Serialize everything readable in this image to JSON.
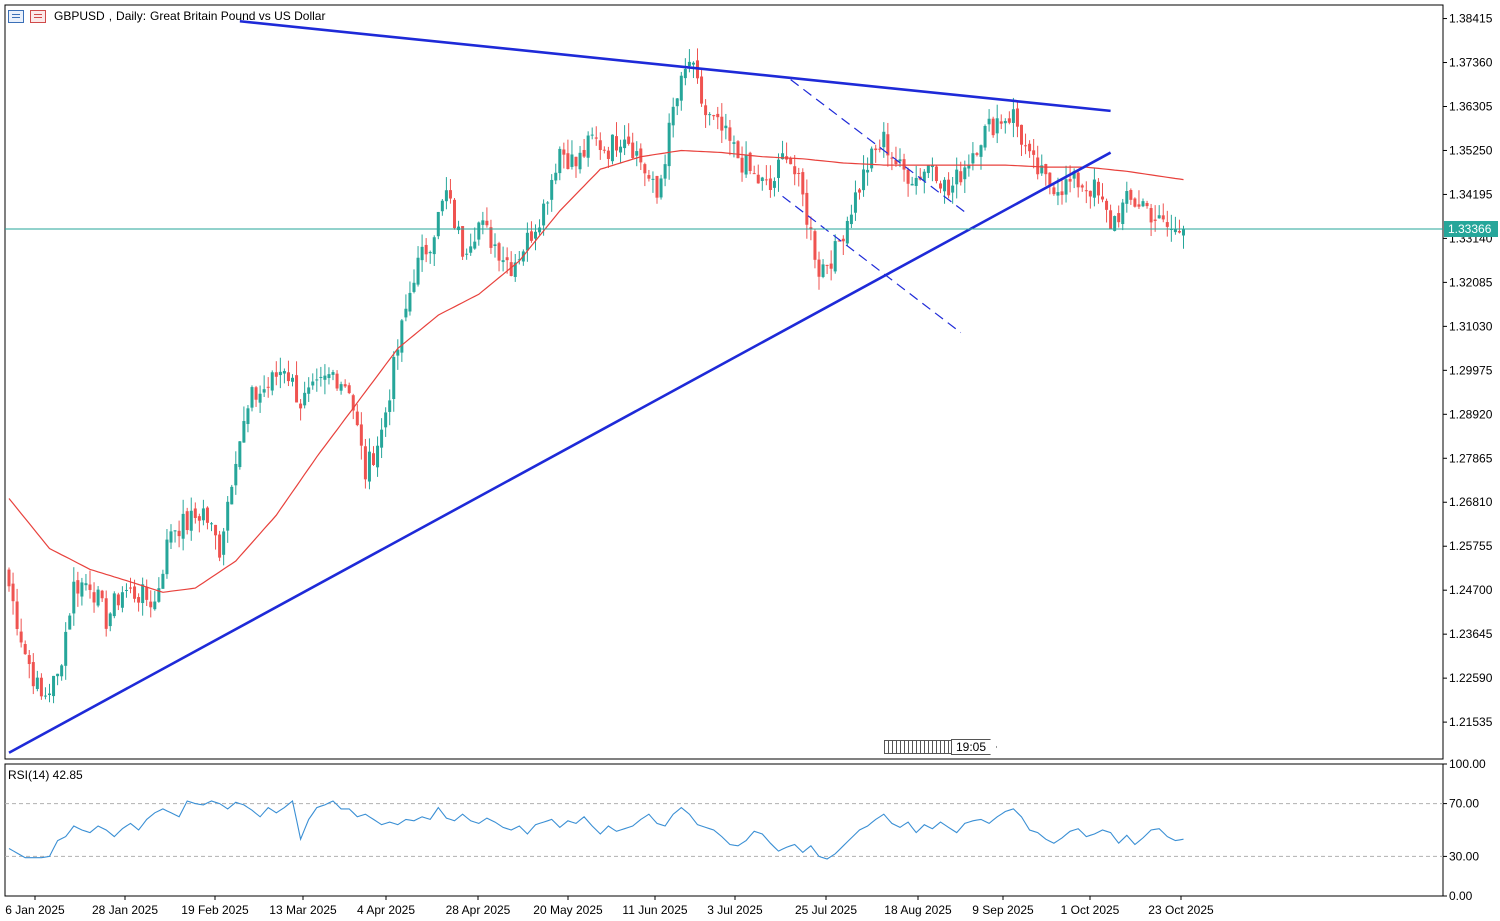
{
  "header": {
    "symbol": "GBPUSD",
    "timeframe": "Daily:",
    "description": "Great Britain Pound vs US Dollar"
  },
  "current_price_label": "1.33366",
  "time_marker_label": "19:05",
  "rsi": {
    "label": "RSI(14) 42.85"
  },
  "colors": {
    "bull": "#26a69a",
    "bear": "#ef5350",
    "ma": "#e8413c",
    "trendline": "#1e2ad8",
    "rsi_line": "#3a8fd4",
    "price_line": "#26a69a"
  },
  "chart_data": [
    {
      "type": "candlestick",
      "title": "GBPUSD, Daily: Great Britain Pound vs US Dollar",
      "ylim": [
        1.2065,
        1.3874
      ],
      "y_ticks": [
        "1.38415",
        "1.37360",
        "1.36305",
        "1.35250",
        "1.34195",
        "1.33140",
        "1.32085",
        "1.31030",
        "1.29975",
        "1.28920",
        "1.27865",
        "1.26810",
        "1.25755",
        "1.24700",
        "1.23645",
        "1.22590",
        "1.21535"
      ],
      "x_ticks": [
        "6 Jan 2025",
        "28 Jan 2025",
        "19 Feb 2025",
        "13 Mar 2025",
        "4 Apr 2025",
        "28 Apr 2025",
        "20 May 2025",
        "11 Jun 2025",
        "3 Jul 2025",
        "25 Jul 2025",
        "18 Aug 2025",
        "9 Sep 2025",
        "1 Oct 2025",
        "23 Oct 2025"
      ],
      "close_anchors": [
        [
          0,
          1.248
        ],
        [
          4,
          1.232
        ],
        [
          8,
          1.221
        ],
        [
          12,
          1.226
        ],
        [
          16,
          1.248
        ],
        [
          20,
          1.249
        ],
        [
          24,
          1.24
        ],
        [
          28,
          1.247
        ],
        [
          32,
          1.246
        ],
        [
          36,
          1.244
        ],
        [
          40,
          1.262
        ],
        [
          44,
          1.263
        ],
        [
          48,
          1.266
        ],
        [
          52,
          1.257
        ],
        [
          56,
          1.28
        ],
        [
          60,
          1.293
        ],
        [
          64,
          1.296
        ],
        [
          68,
          1.301
        ],
        [
          72,
          1.292
        ],
        [
          76,
          1.295
        ],
        [
          80,
          1.299
        ],
        [
          84,
          1.296
        ],
        [
          88,
          1.275
        ],
        [
          92,
          1.285
        ],
        [
          96,
          1.305
        ],
        [
          100,
          1.323
        ],
        [
          104,
          1.331
        ],
        [
          108,
          1.342
        ],
        [
          112,
          1.329
        ],
        [
          116,
          1.335
        ],
        [
          120,
          1.33
        ],
        [
          124,
          1.325
        ],
        [
          128,
          1.331
        ],
        [
          132,
          1.339
        ],
        [
          136,
          1.353
        ],
        [
          140,
          1.349
        ],
        [
          144,
          1.355
        ],
        [
          148,
          1.353
        ],
        [
          152,
          1.357
        ],
        [
          156,
          1.35
        ],
        [
          160,
          1.341
        ],
        [
          164,
          1.362
        ],
        [
          168,
          1.374
        ],
        [
          172,
          1.361
        ],
        [
          176,
          1.357
        ],
        [
          180,
          1.351
        ],
        [
          184,
          1.346
        ],
        [
          188,
          1.343
        ],
        [
          192,
          1.353
        ],
        [
          196,
          1.341
        ],
        [
          200,
          1.324
        ],
        [
          204,
          1.328
        ],
        [
          208,
          1.339
        ],
        [
          212,
          1.349
        ],
        [
          216,
          1.355
        ],
        [
          220,
          1.348
        ],
        [
          224,
          1.346
        ],
        [
          228,
          1.35
        ],
        [
          232,
          1.342
        ],
        [
          236,
          1.349
        ],
        [
          240,
          1.356
        ],
        [
          244,
          1.36
        ],
        [
          248,
          1.361
        ],
        [
          252,
          1.35
        ],
        [
          256,
          1.345
        ],
        [
          260,
          1.344
        ],
        [
          264,
          1.345
        ],
        [
          268,
          1.343
        ],
        [
          272,
          1.335
        ],
        [
          276,
          1.34
        ],
        [
          280,
          1.34
        ],
        [
          284,
          1.335
        ],
        [
          288,
          1.333
        ],
        [
          290,
          1.334
        ]
      ],
      "moving_average": {
        "name": "MA",
        "anchors": [
          [
            0,
            1.269
          ],
          [
            10,
            1.257
          ],
          [
            20,
            1.252
          ],
          [
            30,
            1.249
          ],
          [
            38,
            1.2465
          ],
          [
            46,
            1.2475
          ],
          [
            56,
            1.254
          ],
          [
            66,
            1.265
          ],
          [
            76,
            1.279
          ],
          [
            86,
            1.292
          ],
          [
            96,
            1.305
          ],
          [
            106,
            1.313
          ],
          [
            116,
            1.318
          ],
          [
            126,
            1.326
          ],
          [
            136,
            1.338
          ],
          [
            146,
            1.348
          ],
          [
            156,
            1.351
          ],
          [
            166,
            1.3525
          ],
          [
            176,
            1.352
          ],
          [
            186,
            1.351
          ],
          [
            196,
            1.3505
          ],
          [
            206,
            1.3495
          ],
          [
            216,
            1.349
          ],
          [
            226,
            1.349
          ],
          [
            236,
            1.349
          ],
          [
            246,
            1.349
          ],
          [
            256,
            1.3485
          ],
          [
            266,
            1.3485
          ],
          [
            276,
            1.3475
          ],
          [
            290,
            1.3455
          ]
        ]
      },
      "trendlines": [
        {
          "name": "upper",
          "from": [
            57,
            1.3835
          ],
          "to": [
            272,
            1.362
          ],
          "style": "solid"
        },
        {
          "name": "lower",
          "from": [
            0,
            1.208
          ],
          "to": [
            272,
            1.352
          ],
          "style": "solid"
        },
        {
          "name": "channel_top",
          "from": [
            193,
            1.3695
          ],
          "to": [
            237,
            1.337
          ],
          "style": "dashed"
        },
        {
          "name": "channel_bottom",
          "from": [
            191,
            1.3415
          ],
          "to": [
            235,
            1.3088
          ],
          "style": "dashed"
        }
      ],
      "last_close": 1.33366
    },
    {
      "type": "line",
      "title": "RSI(14) 42.85",
      "ylim": [
        0,
        100
      ],
      "y_ticks": [
        "100.00",
        "70.00",
        "30.00",
        "0.00"
      ],
      "levels": [
        70,
        30
      ],
      "series": [
        {
          "name": "RSI(14)",
          "anchors": [
            [
              0,
              36
            ],
            [
              4,
              29
            ],
            [
              8,
              29
            ],
            [
              10,
              30
            ],
            [
              12,
              42
            ],
            [
              14,
              45
            ],
            [
              16,
              53
            ],
            [
              18,
              50
            ],
            [
              20,
              48
            ],
            [
              22,
              53
            ],
            [
              24,
              50
            ],
            [
              26,
              45
            ],
            [
              28,
              51
            ],
            [
              30,
              55
            ],
            [
              32,
              50
            ],
            [
              34,
              58
            ],
            [
              36,
              63
            ],
            [
              38,
              66
            ],
            [
              40,
              63
            ],
            [
              42,
              60
            ],
            [
              44,
              72
            ],
            [
              46,
              70
            ],
            [
              48,
              69
            ],
            [
              50,
              72
            ],
            [
              52,
              70
            ],
            [
              54,
              66
            ],
            [
              56,
              71
            ],
            [
              58,
              69
            ],
            [
              60,
              65
            ],
            [
              62,
              60
            ],
            [
              64,
              67
            ],
            [
              66,
              63
            ],
            [
              68,
              67
            ],
            [
              70,
              72
            ],
            [
              72,
              43
            ],
            [
              74,
              58
            ],
            [
              76,
              67
            ],
            [
              78,
              69
            ],
            [
              80,
              72
            ],
            [
              82,
              66
            ],
            [
              84,
              66
            ],
            [
              86,
              60
            ],
            [
              88,
              62
            ],
            [
              90,
              58
            ],
            [
              92,
              54
            ],
            [
              94,
              56
            ],
            [
              96,
              54
            ],
            [
              98,
              58
            ],
            [
              100,
              57
            ],
            [
              102,
              60
            ],
            [
              104,
              58
            ],
            [
              106,
              67
            ],
            [
              108,
              59
            ],
            [
              110,
              57
            ],
            [
              112,
              62
            ],
            [
              114,
              57
            ],
            [
              116,
              55
            ],
            [
              118,
              59
            ],
            [
              120,
              56
            ],
            [
              122,
              52
            ],
            [
              124,
              50
            ],
            [
              126,
              53
            ],
            [
              128,
              47
            ],
            [
              130,
              54
            ],
            [
              132,
              56
            ],
            [
              134,
              58
            ],
            [
              136,
              52
            ],
            [
              138,
              57
            ],
            [
              140,
              55
            ],
            [
              142,
              60
            ],
            [
              144,
              53
            ],
            [
              146,
              47
            ],
            [
              148,
              53
            ],
            [
              150,
              49
            ],
            [
              152,
              51
            ],
            [
              154,
              53
            ],
            [
              156,
              58
            ],
            [
              158,
              62
            ],
            [
              160,
              55
            ],
            [
              162,
              53
            ],
            [
              164,
              62
            ],
            [
              166,
              67
            ],
            [
              168,
              62
            ],
            [
              170,
              54
            ],
            [
              172,
              52
            ],
            [
              174,
              50
            ],
            [
              176,
              45
            ],
            [
              178,
              39
            ],
            [
              180,
              38
            ],
            [
              182,
              42
            ],
            [
              184,
              49
            ],
            [
              186,
              47
            ],
            [
              188,
              40
            ],
            [
              190,
              34
            ],
            [
              192,
              37
            ],
            [
              194,
              39
            ],
            [
              196,
              33
            ],
            [
              198,
              38
            ],
            [
              200,
              30
            ],
            [
              202,
              28
            ],
            [
              204,
              32
            ],
            [
              206,
              38
            ],
            [
              208,
              44
            ],
            [
              210,
              50
            ],
            [
              212,
              53
            ],
            [
              214,
              58
            ],
            [
              216,
              62
            ],
            [
              218,
              55
            ],
            [
              220,
              52
            ],
            [
              222,
              56
            ],
            [
              224,
              48
            ],
            [
              226,
              54
            ],
            [
              228,
              51
            ],
            [
              230,
              56
            ],
            [
              232,
              52
            ],
            [
              234,
              48
            ],
            [
              236,
              55
            ],
            [
              238,
              57
            ],
            [
              240,
              58
            ],
            [
              242,
              55
            ],
            [
              244,
              60
            ],
            [
              246,
              64
            ],
            [
              248,
              66
            ],
            [
              250,
              60
            ],
            [
              252,
              50
            ],
            [
              254,
              48
            ],
            [
              256,
              43
            ],
            [
              258,
              40
            ],
            [
              260,
              44
            ],
            [
              262,
              49
            ],
            [
              264,
              51
            ],
            [
              266,
              45
            ],
            [
              268,
              47
            ],
            [
              270,
              50
            ],
            [
              272,
              48
            ],
            [
              274,
              40
            ],
            [
              276,
              46
            ],
            [
              278,
              39
            ],
            [
              280,
              44
            ],
            [
              282,
              50
            ],
            [
              284,
              51
            ],
            [
              286,
              45
            ],
            [
              288,
              42
            ],
            [
              290,
              43
            ]
          ]
        }
      ]
    }
  ]
}
